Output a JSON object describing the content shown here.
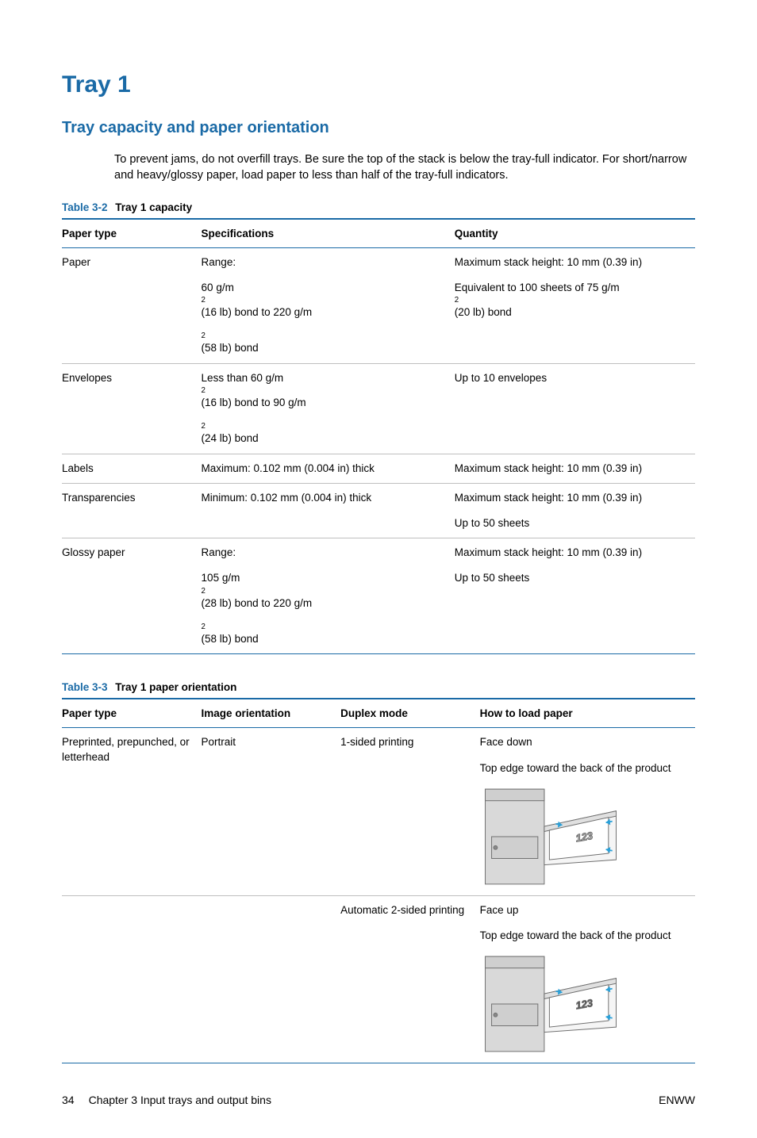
{
  "colors": {
    "accent": "#1a6aa6",
    "rule": "#1a6aa6",
    "text": "#000000",
    "row_border": "#bfbfbf"
  },
  "headings": {
    "h1": "Tray 1",
    "h2": "Tray capacity and paper orientation"
  },
  "intro": "To prevent jams, do not overfill trays. Be sure the top of the stack is below the tray-full indicator. For short/narrow and heavy/glossy paper, load paper to less than half of the tray-full indicators.",
  "table1": {
    "caption_num": "Table 3-2",
    "caption_title": "Tray 1 capacity",
    "columns": [
      "Paper type",
      "Specifications",
      "Quantity"
    ],
    "col_widths": [
      "22%",
      "40%",
      "38%"
    ],
    "rows": [
      {
        "type": "Paper",
        "spec": [
          "Range:",
          "60 g/m² (16 lb) bond to 220 g/m² (58 lb) bond"
        ],
        "qty": [
          "Maximum stack height: 10 mm (0.39 in)",
          "Equivalent to 100 sheets of 75 g/m² (20 lb) bond"
        ]
      },
      {
        "type": "Envelopes",
        "spec": [
          "Less than 60 g/m² (16 lb) bond to 90 g/m² (24 lb) bond"
        ],
        "qty": [
          "Up to 10 envelopes"
        ]
      },
      {
        "type": "Labels",
        "spec": [
          "Maximum: 0.102 mm (0.004 in) thick"
        ],
        "qty": [
          "Maximum stack height: 10 mm (0.39 in)"
        ]
      },
      {
        "type": "Transparencies",
        "spec": [
          "Minimum: 0.102 mm (0.004 in) thick"
        ],
        "qty": [
          "Maximum stack height: 10 mm (0.39 in)",
          "Up to 50 sheets"
        ]
      },
      {
        "type": "Glossy paper",
        "spec": [
          "Range:",
          "105 g/m² (28 lb) bond to 220 g/m² (58 lb) bond"
        ],
        "qty": [
          "Maximum stack height: 10 mm (0.39 in)",
          "Up to 50 sheets"
        ]
      }
    ]
  },
  "table2": {
    "caption_num": "Table 3-3",
    "caption_title": "Tray 1 paper orientation",
    "columns": [
      "Paper type",
      "Image orientation",
      "Duplex mode",
      "How to load paper"
    ],
    "col_widths": [
      "22%",
      "22%",
      "22%",
      "34%"
    ],
    "rows": [
      {
        "type": "Preprinted, prepunched, or letterhead",
        "orientation": "Portrait",
        "duplex": "1-sided printing",
        "load": [
          "Face down",
          "Top edge toward the back of the product"
        ],
        "illus_label": "123",
        "illus_face_down": true
      },
      {
        "type": "",
        "orientation": "",
        "duplex": "Automatic 2-sided printing",
        "load": [
          "Face up",
          "Top edge toward the back of the product"
        ],
        "illus_label": "123",
        "illus_face_down": false
      }
    ]
  },
  "footer": {
    "page_num": "34",
    "chapter": "Chapter 3   Input trays and output bins",
    "right": "ENWW"
  }
}
